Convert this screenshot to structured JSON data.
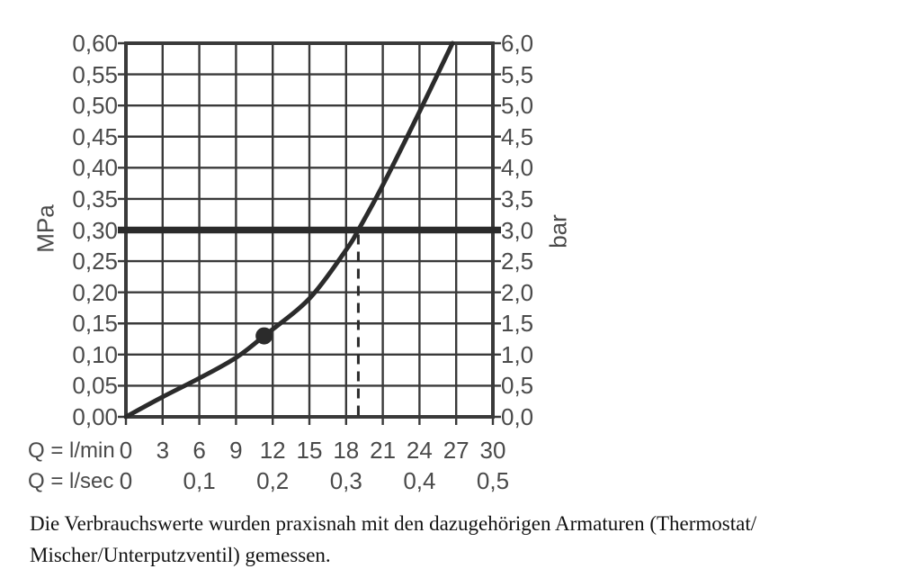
{
  "chart_data": {
    "type": "line",
    "title": "",
    "x_axis_label_primary": "Q = l/min",
    "x_axis_label_secondary": "Q = l/sec",
    "y_unit_left": "MPa",
    "y_unit_right": "bar",
    "x_range": [
      0,
      30
    ],
    "y_range_mpa": [
      0,
      0.6
    ],
    "y_range_bar": [
      0,
      6
    ],
    "grid": true,
    "legend": "none",
    "x_ticks_lmin": [
      0,
      3,
      6,
      9,
      12,
      15,
      18,
      21,
      24,
      27,
      30
    ],
    "x_tick_labels_lmin": [
      "0",
      "3",
      "6",
      "9",
      "12",
      "15",
      "18",
      "21",
      "24",
      "27",
      "30"
    ],
    "x_ticks_lsec": [
      0,
      6,
      12,
      18,
      24,
      30
    ],
    "x_tick_labels_lsec": [
      "0",
      "0,1",
      "0,2",
      "0,3",
      "0,4",
      "0,5"
    ],
    "y_ticks_mpa": [
      0,
      0.05,
      0.1,
      0.15,
      0.2,
      0.25,
      0.3,
      0.35,
      0.4,
      0.45,
      0.5,
      0.55,
      0.6
    ],
    "y_tick_labels_mpa": [
      "0,00",
      "0,05",
      "0,10",
      "0,15",
      "0,20",
      "0,25",
      "0,30",
      "0,35",
      "0,40",
      "0,45",
      "0,50",
      "0,55",
      "0,60"
    ],
    "y_tick_labels_bar": [
      "0,0",
      "0,5",
      "1,0",
      "1,5",
      "2,0",
      "2,5",
      "3,0",
      "3,5",
      "4,0",
      "4,5",
      "5,0",
      "5,5",
      "6,0"
    ],
    "series": [
      {
        "name": "flow-pressure-curve",
        "x_lmin": [
          0,
          3,
          6,
          9,
          11.3,
          15,
          18,
          19,
          21,
          24,
          26.7
        ],
        "y_mpa": [
          0,
          0.032,
          0.062,
          0.095,
          0.13,
          0.19,
          0.268,
          0.3,
          0.372,
          0.49,
          0.6
        ]
      }
    ],
    "marker_point": {
      "x_lmin": 11.3,
      "y_mpa": 0.13
    },
    "reference_line_mpa": 0.3,
    "reference_line_bar": 3.0,
    "dashed_guide_lmin": 19,
    "colors": {
      "line": "#2b2b2b",
      "grid": "#3a3a3a",
      "label": "#4a4a4a"
    }
  },
  "caption": {
    "line1": "Die Verbrauchswerte wurden praxisnah mit den dazugehörigen Armaturen (Thermostat/",
    "line2": "Mischer/Unterputzventil) gemessen."
  }
}
